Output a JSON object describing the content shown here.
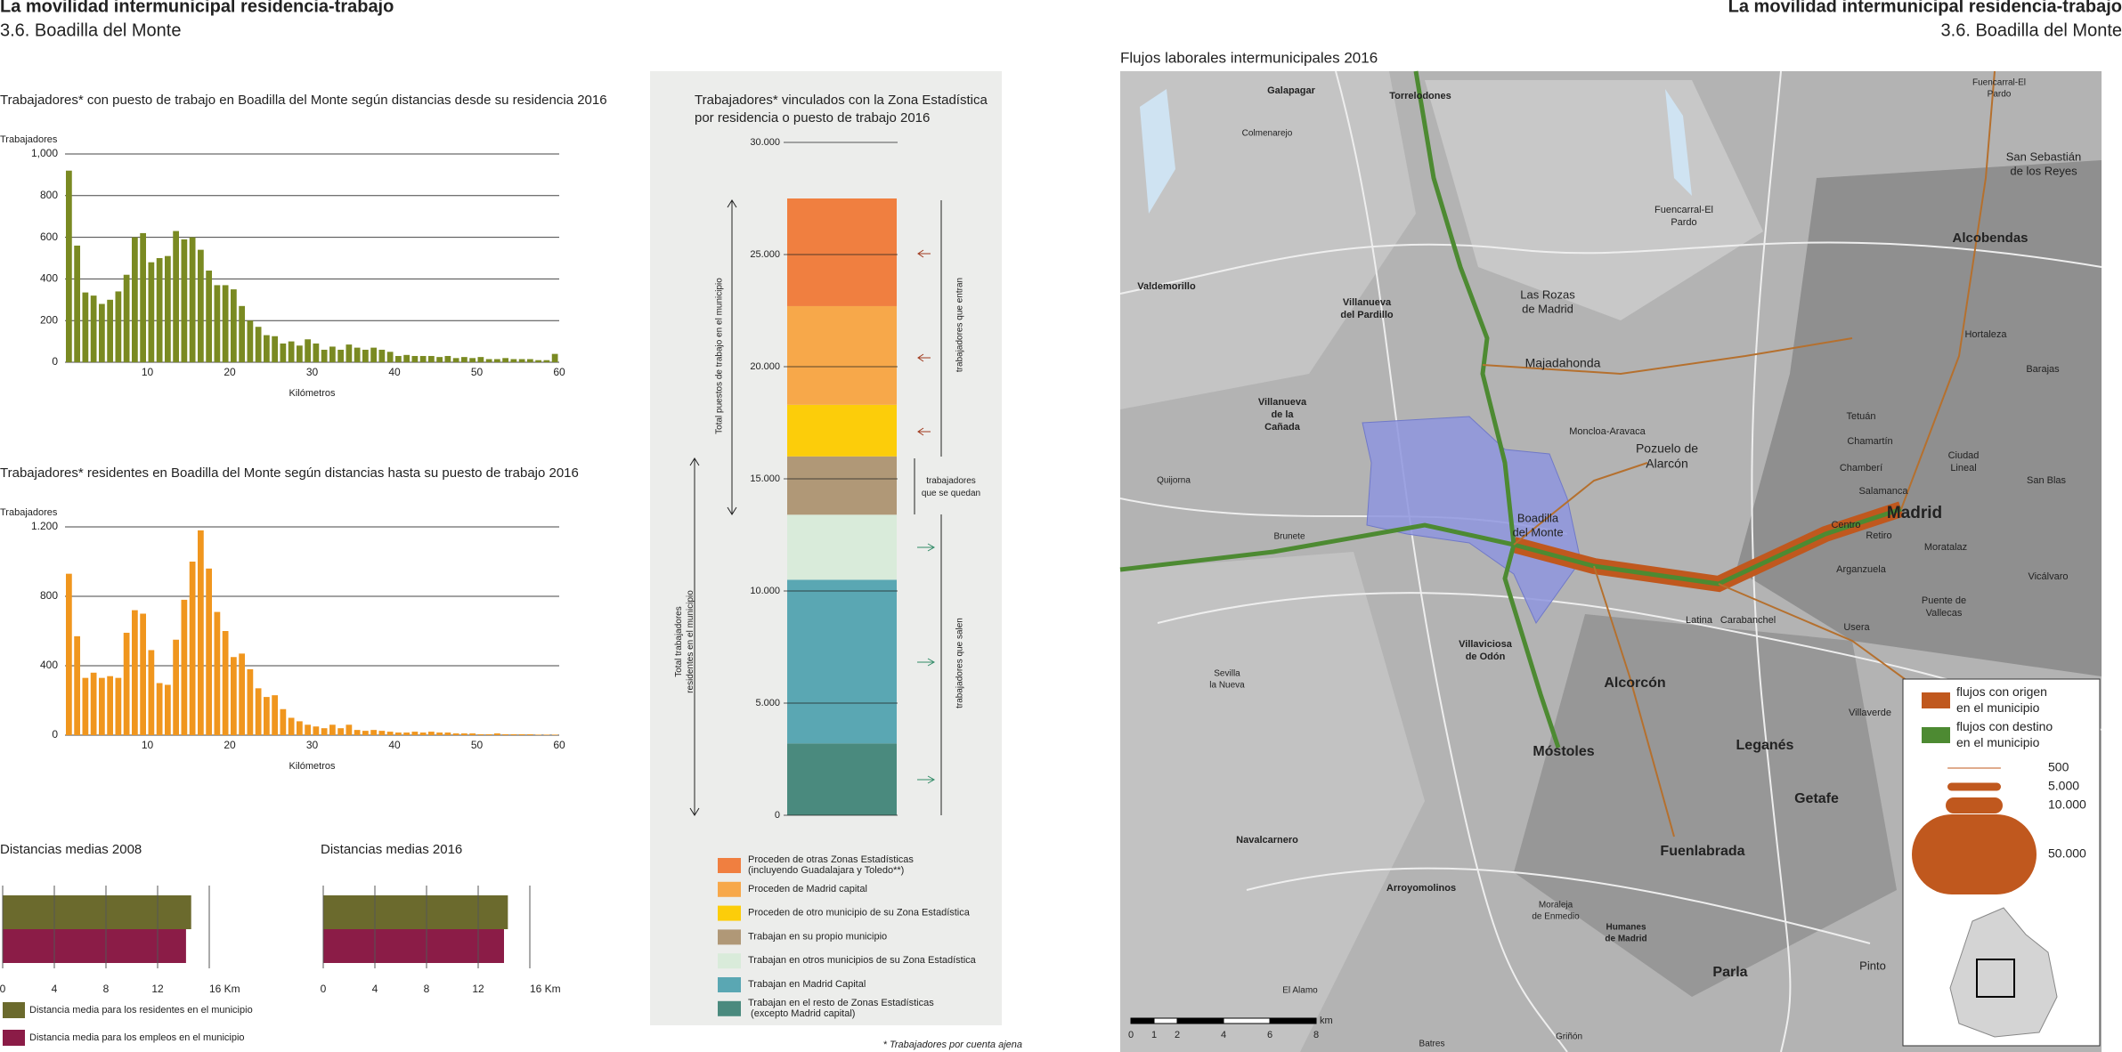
{
  "header": {
    "title": "La movilidad intermunicipal residencia-trabajo",
    "subtitle": "3.6. Boadilla del Monte"
  },
  "chart_data": [
    {
      "type": "histogram",
      "title": "Trabajadores* con puesto de trabajo en Boadilla del Monte según distancias  desde su residencia 2016",
      "y_label": "Trabajadores",
      "x_label": "Kilómetros",
      "color": "#7a8a22",
      "bins": [
        0,
        1,
        2,
        3,
        4,
        5,
        6,
        7,
        8,
        9,
        10,
        11,
        12,
        13,
        14,
        15,
        16,
        17,
        18,
        19,
        20,
        21,
        22,
        23,
        24,
        25,
        26,
        27,
        28,
        29,
        30,
        31,
        32,
        33,
        34,
        35,
        36,
        37,
        38,
        39,
        40,
        41,
        42,
        43,
        44,
        45,
        46,
        47,
        48,
        49,
        50,
        51,
        52,
        53,
        54,
        55,
        56,
        57,
        58,
        59,
        60
      ],
      "values": [
        920,
        560,
        335,
        320,
        280,
        300,
        340,
        420,
        600,
        620,
        480,
        500,
        510,
        630,
        590,
        600,
        540,
        440,
        370,
        370,
        350,
        270,
        200,
        170,
        130,
        125,
        90,
        100,
        80,
        110,
        90,
        60,
        75,
        60,
        85,
        70,
        60,
        70,
        60,
        50,
        30,
        35,
        30,
        30,
        30,
        25,
        30,
        20,
        25,
        20,
        25,
        15,
        15,
        20,
        15,
        15,
        15,
        10,
        10,
        40
      ],
      "xlim": [
        0,
        60
      ],
      "xticks": [
        10,
        20,
        30,
        40,
        50,
        60
      ],
      "ylim": [
        0,
        1000
      ],
      "yticks": [
        0,
        200,
        400,
        600,
        800,
        {
          "value": 1000,
          "label": "1,000"
        }
      ],
      "grid": true
    },
    {
      "type": "histogram",
      "title": "Trabajadores* residentes en Boadilla del Monte según distancias  hasta su puesto de trabajo 2016",
      "y_label": "Trabajadores",
      "x_label": "Kilómetros",
      "color": "#f0961e",
      "bins": [
        0,
        1,
        2,
        3,
        4,
        5,
        6,
        7,
        8,
        9,
        10,
        11,
        12,
        13,
        14,
        15,
        16,
        17,
        18,
        19,
        20,
        21,
        22,
        23,
        24,
        25,
        26,
        27,
        28,
        29,
        30,
        31,
        32,
        33,
        34,
        35,
        36,
        37,
        38,
        39,
        40,
        41,
        42,
        43,
        44,
        45,
        46,
        47,
        48,
        49,
        50,
        51,
        52,
        53,
        54,
        55,
        56,
        57,
        58,
        59,
        60
      ],
      "values": [
        930,
        570,
        330,
        360,
        330,
        340,
        330,
        590,
        720,
        700,
        490,
        300,
        290,
        550,
        780,
        1000,
        1180,
        960,
        710,
        600,
        450,
        470,
        380,
        270,
        220,
        230,
        150,
        100,
        80,
        60,
        50,
        40,
        60,
        40,
        60,
        30,
        25,
        30,
        25,
        20,
        15,
        15,
        20,
        15,
        20,
        15,
        15,
        10,
        10,
        10,
        5,
        5,
        10,
        5,
        5,
        5,
        5,
        3,
        3,
        3
      ],
      "xlim": [
        0,
        60
      ],
      "xticks": [
        10,
        20,
        30,
        40,
        50,
        60
      ],
      "ylim": [
        0,
        1200
      ],
      "yticks": [
        0,
        400,
        800,
        {
          "value": 1200,
          "label": "1.200"
        }
      ],
      "grid": true
    },
    {
      "type": "stacked_column",
      "title": [
        "Trabajadores* vinculados con la Zona Estadística",
        "por residencia o puesto de trabajo 2016"
      ],
      "ylim": [
        0,
        30000
      ],
      "yticks": [
        0,
        {
          "value": 5000,
          "label": "5.000"
        },
        {
          "value": 10000,
          "label": "10.000"
        },
        {
          "value": 15000,
          "label": "15.000"
        },
        {
          "value": 20000,
          "label": "20.000"
        },
        {
          "value": 25000,
          "label": "25.000"
        },
        {
          "value": 30000,
          "label": "30.000"
        }
      ],
      "segments": [
        {
          "name": "Proceden de otras Zonas Estadísticas\n(incluyendo Guadalajara y Toledo**)",
          "color": "#f07f40",
          "value": 4800
        },
        {
          "name": "Proceden de Madrid capital",
          "color": "#f7a84a",
          "value": 4400
        },
        {
          "name": "Proceden de otro municipio de su Zona Estadística",
          "color": "#fccd0a",
          "value": 2300
        },
        {
          "name": "Trabajan en su propio municipio",
          "color": "#b09877",
          "value": 2600
        },
        {
          "name": "Trabajan en otros municipios de su Zona Estadística",
          "color": "#d9ebda",
          "value": 2900
        },
        {
          "name": "Trabajan en Madrid Capital",
          "color": "#5aa7b3",
          "value": 7300
        },
        {
          "name": "Trabajan en el resto de Zonas Estadísticas\n (excepto Madrid capital)",
          "color": "#4a8a7e",
          "value": 3200
        }
      ],
      "annotations": {
        "total_jobs": "Total puestos de trabajo en el municipio",
        "total_residents": "Total trabajadores\nresidentes en el municipio",
        "in": "trabajadores que entran",
        "stay": "trabajadores\nque se quedan",
        "out": "trabajadores que salen"
      },
      "footnote": "* Trabajadores por cuenta ajena"
    },
    {
      "type": "hbar",
      "title": "Distancias medias 2008",
      "xlim": [
        0,
        16
      ],
      "xticks": [
        0,
        4,
        8,
        12,
        {
          "value": 16,
          "label": "16 Km"
        }
      ],
      "series": [
        {
          "name": "Distancia media para los residentes en el municipio",
          "color": "#6b6a2d",
          "value": 14.6
        },
        {
          "name": "Distancia media para los empleos en el municipio",
          "color": "#8b1c47",
          "value": 14.2
        }
      ]
    },
    {
      "type": "hbar",
      "title": "Distancias medias 2016",
      "xlim": [
        0,
        16
      ],
      "xticks": [
        0,
        4,
        8,
        12,
        {
          "value": 16,
          "label": "16 Km"
        }
      ],
      "series": [
        {
          "color": "#6b6a2d",
          "value": 14.3
        },
        {
          "color": "#8b1c47",
          "value": 14.0
        }
      ]
    }
  ],
  "map": {
    "title": "Flujos laborales intermunicipales 2016",
    "places": [
      [
        "Galapagar"
      ],
      [
        "Torrelodones"
      ],
      [
        "Colmenarejo"
      ],
      [
        "Fuencarral-El",
        "Pardo"
      ],
      [
        "San Sebastián",
        "de los Reyes"
      ],
      [
        "Alcobendas"
      ],
      [
        "Fuencarral-El",
        "Pardo"
      ],
      [
        "Valdemorillo"
      ],
      [
        "Villanueva",
        "del Pardillo"
      ],
      [
        "Las Rozas",
        "de Madrid"
      ],
      [
        "Majadahonda"
      ],
      [
        "Hortaleza"
      ],
      [
        "Barajas"
      ],
      [
        "Villanueva",
        "de la",
        "Cañada"
      ],
      [
        "Pozuelo de",
        "Alarcón"
      ],
      [
        "Moncloa-Aravaca"
      ],
      [
        "Tetuán"
      ],
      [
        "Chamartín"
      ],
      [
        "Ciudad",
        "Lineal"
      ],
      [
        "Chamberí"
      ],
      [
        "Quijorna"
      ],
      [
        "Salamanca"
      ],
      [
        "San Blas"
      ],
      [
        "Madrid"
      ],
      [
        "Boadilla",
        "del Monte"
      ],
      [
        "Centro"
      ],
      [
        "Retiro"
      ],
      [
        "Brunete"
      ],
      [
        "Moratalaz"
      ],
      [
        "Arganzuela"
      ],
      [
        "Vicálvaro"
      ],
      [
        "Puente de",
        "Vallecas"
      ],
      [
        "Latina"
      ],
      [
        "Carabanchel"
      ],
      [
        "Usera"
      ],
      [
        "Villaviciosa",
        "de Odón"
      ],
      [
        "Sevilla",
        "la Nueva"
      ],
      [
        "Alcorcón"
      ],
      [
        "Villaverde"
      ],
      [
        "Móstoles"
      ],
      [
        "Leganés"
      ],
      [
        "Getafe"
      ],
      [
        "Navalcarnero"
      ],
      [
        "Fuenlabrada"
      ],
      [
        "Arroyomolinos"
      ],
      [
        "Moraleja",
        "de Enmedio"
      ],
      [
        "Humanes",
        "de Madrid"
      ],
      [
        "Parla"
      ],
      [
        "Pinto"
      ],
      [
        "El Alamo"
      ],
      [
        "Batres"
      ],
      [
        "Griñón"
      ]
    ],
    "legend": {
      "flows": [
        {
          "name": "flujos con origen\nen el municipio",
          "color": "#c0581e"
        },
        {
          "name": "flujos con destino\nen el municipio",
          "color": "#4d8a32"
        }
      ],
      "sizes": [
        500,
        {
          "value": 5000,
          "label": "5.000"
        },
        {
          "value": 10000,
          "label": "10.000"
        },
        {
          "value": 50000,
          "label": "50.000"
        }
      ]
    },
    "scale": {
      "ticks": [
        0,
        1,
        2,
        4,
        6,
        8
      ],
      "unit": "km"
    }
  }
}
